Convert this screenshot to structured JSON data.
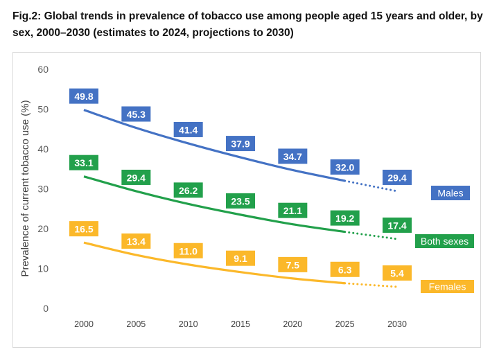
{
  "chart_data": {
    "type": "line",
    "title": "Fig.2: Global trends in prevalence of tobacco use among people aged 15 years and older, by sex, 2000–2030 (estimates to 2024, projections to 2030)",
    "xlabel": "",
    "ylabel": "Prevalence of current tobacco use (%)",
    "x": [
      2000,
      2005,
      2010,
      2015,
      2020,
      2025,
      2030
    ],
    "xticks": [
      "2000",
      "2005",
      "2010",
      "2015",
      "2020",
      "2025",
      "2030"
    ],
    "ylim": [
      0,
      60
    ],
    "yticks": [
      "0",
      "10",
      "20",
      "30",
      "40",
      "50",
      "60"
    ],
    "grid": false,
    "legend": "right, labels at line ends",
    "projection_from": 2025,
    "series": [
      {
        "name": "Males",
        "color": "#4472C4",
        "values": [
          49.8,
          45.3,
          41.4,
          37.9,
          34.7,
          32.0,
          29.4
        ],
        "labels": [
          "49.8",
          "45.3",
          "41.4",
          "37.9",
          "34.7",
          "32.0",
          "29.4"
        ]
      },
      {
        "name": "Both sexes",
        "color": "#22A04B",
        "values": [
          33.1,
          29.4,
          26.2,
          23.5,
          21.1,
          19.2,
          17.4
        ],
        "labels": [
          "33.1",
          "29.4",
          "26.2",
          "23.5",
          "21.1",
          "19.2",
          "17.4"
        ]
      },
      {
        "name": "Females",
        "color": "#FBB82A",
        "values": [
          16.5,
          13.4,
          11.0,
          9.1,
          7.5,
          6.3,
          5.4
        ],
        "labels": [
          "16.5",
          "13.4",
          "11.0",
          "9.1",
          "7.5",
          "6.3",
          "5.4"
        ]
      }
    ]
  }
}
